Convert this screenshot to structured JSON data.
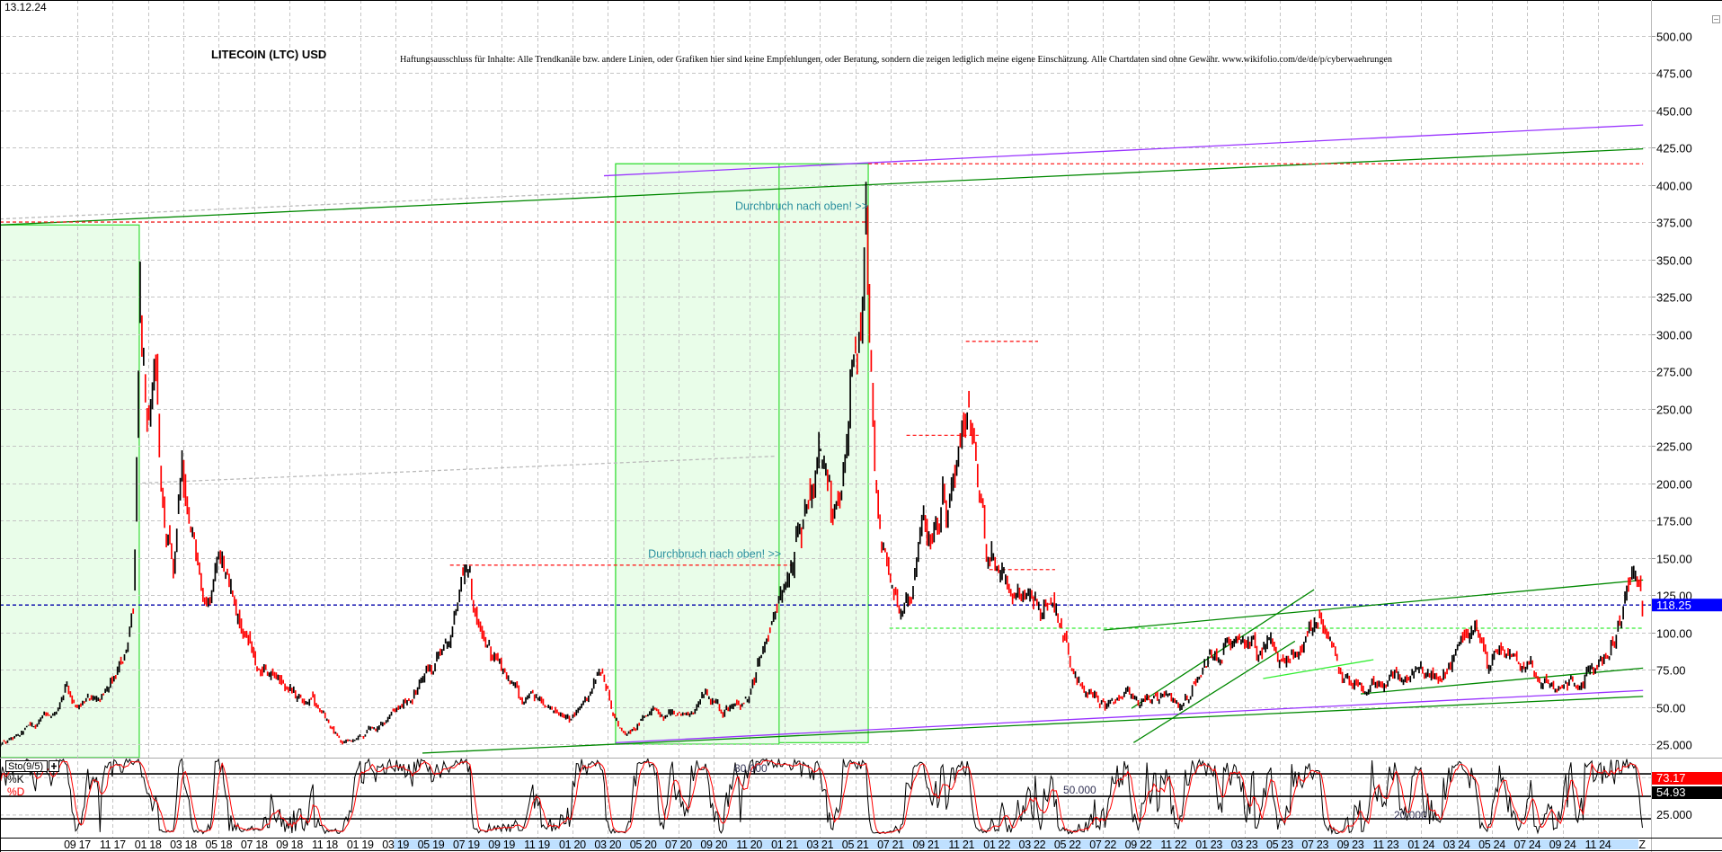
{
  "header": {
    "date": "13.12.24",
    "title": "LITECOIN (LTC) USD",
    "disclaimer": "Haftungsausschluss für Inhalte: Alle Trendkanäle bzw. andere Linien, oder Grafiken hier sind keine Empfehlungen, oder Beratung, sondern die zeigen lediglich meine eigene Einschätzung. Alle Chartdaten sind ohne Gewähr.  www.wikifolio.com/de/de/p/cyberwaehrungen"
  },
  "colors": {
    "up": "#000000",
    "down": "#ff0000",
    "purple": "#9933ff",
    "green": "#008800",
    "lightgreen": "#33ee33",
    "red_dashed": "#ff2020",
    "navy_dashed": "#0000aa",
    "gray_dashed": "#bbbbbb",
    "box_fill": "#e9fde9",
    "box_stroke": "#33dd33",
    "annotation": "#2a8f9f",
    "price_badge": "#0000ff"
  },
  "chart_data": {
    "type": "candlestick",
    "title": "LITECOIN (LTC) USD",
    "ylim": [
      16,
      510
    ],
    "xlim": [
      2017.3,
      2025.08
    ],
    "grid": true,
    "y_ticks": [
      "500.00",
      "475.00",
      "450.00",
      "425.00",
      "400.00",
      "375.00",
      "350.00",
      "325.00",
      "300.00",
      "275.00",
      "250.00",
      "225.00",
      "200.00",
      "175.00",
      "150.00",
      "125.00",
      "100.00",
      "75.00",
      "50.00",
      "25.000"
    ],
    "y_tick_values": [
      500,
      475,
      450,
      425,
      400,
      375,
      350,
      325,
      300,
      275,
      250,
      225,
      200,
      175,
      150,
      125,
      100,
      75,
      50,
      25
    ],
    "x_ticks": [
      "09 17",
      "11 17",
      "01 18",
      "03 18",
      "05 18",
      "07 18",
      "09 18",
      "11 18",
      "01 19",
      "03 19",
      "05 19",
      "07 19",
      "09 19",
      "11 19",
      "01 20",
      "03 20",
      "05 20",
      "07 20",
      "09 20",
      "11 20",
      "01 21",
      "03 21",
      "05 21",
      "07 21",
      "09 21",
      "11 21",
      "01 22",
      "03 22",
      "05 22",
      "07 22",
      "09 22",
      "11 22",
      "01 23",
      "03 23",
      "05 23",
      "07 23",
      "09 23",
      "11 23",
      "01 24",
      "03 24",
      "05 24",
      "07 24",
      "09 24",
      "11 24"
    ],
    "x_end_marker": "Z",
    "last_price": "118.25",
    "last_price_value": 118.25,
    "price_path_decimal_year": [
      [
        2017.3,
        25
      ],
      [
        2017.4,
        30
      ],
      [
        2017.45,
        40
      ],
      [
        2017.55,
        45
      ],
      [
        2017.62,
        62
      ],
      [
        2017.66,
        50
      ],
      [
        2017.72,
        55
      ],
      [
        2017.8,
        55
      ],
      [
        2017.88,
        80
      ],
      [
        2017.93,
        110
      ],
      [
        2017.96,
        345
      ],
      [
        2017.99,
        250
      ],
      [
        2018.04,
        250
      ],
      [
        2018.08,
        180
      ],
      [
        2018.12,
        140
      ],
      [
        2018.16,
        220
      ],
      [
        2018.22,
        170
      ],
      [
        2018.27,
        120
      ],
      [
        2018.33,
        160
      ],
      [
        2018.38,
        130
      ],
      [
        2018.45,
        100
      ],
      [
        2018.52,
        80
      ],
      [
        2018.6,
        70
      ],
      [
        2018.68,
        58
      ],
      [
        2018.78,
        52
      ],
      [
        2018.85,
        40
      ],
      [
        2018.92,
        28
      ],
      [
        2018.97,
        30
      ],
      [
        2019.05,
        32
      ],
      [
        2019.15,
        45
      ],
      [
        2019.25,
        60
      ],
      [
        2019.33,
        75
      ],
      [
        2019.42,
        95
      ],
      [
        2019.47,
        128
      ],
      [
        2019.5,
        138
      ],
      [
        2019.55,
        110
      ],
      [
        2019.62,
        90
      ],
      [
        2019.7,
        70
      ],
      [
        2019.78,
        58
      ],
      [
        2019.85,
        55
      ],
      [
        2019.92,
        45
      ],
      [
        2019.99,
        42
      ],
      [
        2020.08,
        60
      ],
      [
        2020.12,
        78
      ],
      [
        2020.17,
        60
      ],
      [
        2020.2,
        40
      ],
      [
        2020.25,
        31
      ],
      [
        2020.33,
        45
      ],
      [
        2020.45,
        45
      ],
      [
        2020.55,
        45
      ],
      [
        2020.62,
        58
      ],
      [
        2020.7,
        48
      ],
      [
        2020.8,
        50
      ],
      [
        2020.87,
        75
      ],
      [
        2020.92,
        100
      ],
      [
        2020.98,
        120
      ],
      [
        2021.05,
        150
      ],
      [
        2021.12,
        200
      ],
      [
        2021.16,
        230
      ],
      [
        2021.22,
        180
      ],
      [
        2021.27,
        200
      ],
      [
        2021.32,
        280
      ],
      [
        2021.36,
        300
      ],
      [
        2021.38,
        365
      ],
      [
        2021.4,
        290
      ],
      [
        2021.43,
        200
      ],
      [
        2021.46,
        150
      ],
      [
        2021.5,
        130
      ],
      [
        2021.55,
        110
      ],
      [
        2021.6,
        130
      ],
      [
        2021.65,
        175
      ],
      [
        2021.7,
        165
      ],
      [
        2021.75,
        190
      ],
      [
        2021.8,
        200
      ],
      [
        2021.84,
        270
      ],
      [
        2021.87,
        240
      ],
      [
        2021.92,
        190
      ],
      [
        2021.97,
        150
      ],
      [
        2022.02,
        140
      ],
      [
        2022.08,
        120
      ],
      [
        2022.15,
        125
      ],
      [
        2022.2,
        110
      ],
      [
        2022.27,
        120
      ],
      [
        2022.32,
        100
      ],
      [
        2022.37,
        70
      ],
      [
        2022.45,
        55
      ],
      [
        2022.5,
        50
      ],
      [
        2022.6,
        58
      ],
      [
        2022.7,
        55
      ],
      [
        2022.8,
        58
      ],
      [
        2022.87,
        52
      ],
      [
        2022.95,
        70
      ],
      [
        2023.05,
        85
      ],
      [
        2023.12,
        100
      ],
      [
        2023.2,
        90
      ],
      [
        2023.3,
        90
      ],
      [
        2023.4,
        85
      ],
      [
        2023.47,
        105
      ],
      [
        2023.52,
        110
      ],
      [
        2023.58,
        90
      ],
      [
        2023.63,
        70
      ],
      [
        2023.7,
        63
      ],
      [
        2023.8,
        68
      ],
      [
        2023.9,
        72
      ],
      [
        2024.0,
        68
      ],
      [
        2024.1,
        70
      ],
      [
        2024.2,
        95
      ],
      [
        2024.25,
        105
      ],
      [
        2024.32,
        85
      ],
      [
        2024.4,
        85
      ],
      [
        2024.5,
        75
      ],
      [
        2024.6,
        62
      ],
      [
        2024.67,
        65
      ],
      [
        2024.75,
        68
      ],
      [
        2024.85,
        75
      ],
      [
        2024.93,
        100
      ],
      [
        2024.99,
        140
      ],
      [
        2025.04,
        118
      ]
    ],
    "trendlines": [
      {
        "name": "purple-upper-line",
        "color": "purple",
        "dash": false,
        "p1": [
          2020.145,
          406
        ],
        "p2": [
          2025.04,
          440
        ]
      },
      {
        "name": "green-upper-line",
        "color": "green",
        "dash": false,
        "p1": [
          2017.3,
          373
        ],
        "p2": [
          2025.04,
          424
        ]
      },
      {
        "name": "gray-dashed-line-1",
        "color": "gray_dashed",
        "dash": true,
        "p1": [
          2017.3,
          377
        ],
        "p2": [
          2020.145,
          395
        ]
      },
      {
        "name": "gray-dashed-line-2",
        "color": "gray_dashed",
        "dash": true,
        "p1": [
          2017.97,
          200
        ],
        "p2": [
          2020.95,
          218
        ]
      },
      {
        "name": "red-level-375",
        "color": "red_dashed",
        "dash": true,
        "p1": [
          2017.3,
          375
        ],
        "p2": [
          2021.39,
          375
        ]
      },
      {
        "name": "red-level-414",
        "color": "red_dashed",
        "dash": true,
        "p1": [
          2021.39,
          414
        ],
        "p2": [
          2025.04,
          414
        ]
      },
      {
        "name": "red-level-145",
        "color": "red_dashed",
        "dash": true,
        "p1": [
          2019.42,
          145
        ],
        "p2": [
          2021.03,
          145
        ]
      },
      {
        "name": "red-level-232",
        "color": "red_dashed",
        "dash": true,
        "p1": [
          2021.57,
          232
        ],
        "p2": [
          2021.91,
          232
        ]
      },
      {
        "name": "red-level-295",
        "color": "red_dashed",
        "dash": true,
        "p1": [
          2021.85,
          295
        ],
        "p2": [
          2022.19,
          295
        ]
      },
      {
        "name": "red-level-142",
        "color": "red_dashed",
        "dash": true,
        "p1": [
          2021.96,
          142
        ],
        "p2": [
          2022.27,
          142
        ]
      },
      {
        "name": "lightgreen-level-103",
        "color": "lightgreen",
        "dash": true,
        "p1": [
          2021.49,
          102.7
        ],
        "p2": [
          2025.04,
          102.7
        ]
      },
      {
        "name": "navy-level-last",
        "color": "navy_dashed",
        "dash": true,
        "p1": [
          2017.3,
          118.25
        ],
        "p2": [
          2025.08,
          118.25
        ]
      },
      {
        "name": "green-lower-line",
        "color": "green",
        "dash": false,
        "p1": [
          2019.29,
          19
        ],
        "p2": [
          2025.04,
          57
        ]
      },
      {
        "name": "purple-lower-line",
        "color": "purple",
        "dash": false,
        "p1": [
          2020.2,
          26
        ],
        "p2": [
          2025.04,
          61
        ]
      },
      {
        "name": "green-channel-top",
        "color": "green",
        "dash": false,
        "p1": [
          2022.5,
          101.5
        ],
        "p2": [
          2025.04,
          135
        ]
      },
      {
        "name": "green-diagonal-1",
        "color": "green",
        "dash": false,
        "p1": [
          2022.63,
          49
        ],
        "p2": [
          2023.49,
          128.6
        ]
      },
      {
        "name": "green-diagonal-2",
        "color": "green",
        "dash": false,
        "p1": [
          2022.64,
          26
        ],
        "p2": [
          2023.4,
          94
        ]
      },
      {
        "name": "lightgreen-short-line",
        "color": "lightgreen",
        "dash": false,
        "p1": [
          2023.25,
          69
        ],
        "p2": [
          2023.77,
          81.6
        ]
      },
      {
        "name": "green-support-line",
        "color": "green",
        "dash": false,
        "p1": [
          2023.71,
          58.7
        ],
        "p2": [
          2025.04,
          76
        ]
      }
    ],
    "boxes": [
      {
        "name": "breakout-zone-2017",
        "t": [
          2017.3,
          2017.956
        ],
        "price": [
          16,
          373
        ]
      },
      {
        "name": "breakout-zone-2020-b",
        "t": [
          2020.2,
          2021.39
        ],
        "price": [
          26,
          414
        ]
      },
      {
        "name": "breakout-zone-2020-a",
        "t": [
          2020.2,
          2020.97
        ],
        "price": [
          25,
          414
        ]
      }
    ],
    "annotations": [
      {
        "text": "Durchbruch nach oben! >>",
        "t": 2021.39,
        "price": 383
      },
      {
        "text": "Durchbruch nach oben! >>",
        "t": 2020.98,
        "price": 150
      }
    ],
    "stochastic": {
      "label": "Sto(9/5)",
      "k_label": "%K",
      "d_label": "%D",
      "k_period": 9,
      "d_period": 5,
      "levels": [
        80,
        50,
        20
      ],
      "level_labels": [
        "80.000",
        "50.000",
        "20.000"
      ],
      "axis_label": "25.000",
      "last_k": "54.93",
      "last_d": "73.17",
      "ylim": [
        0,
        100
      ]
    }
  }
}
